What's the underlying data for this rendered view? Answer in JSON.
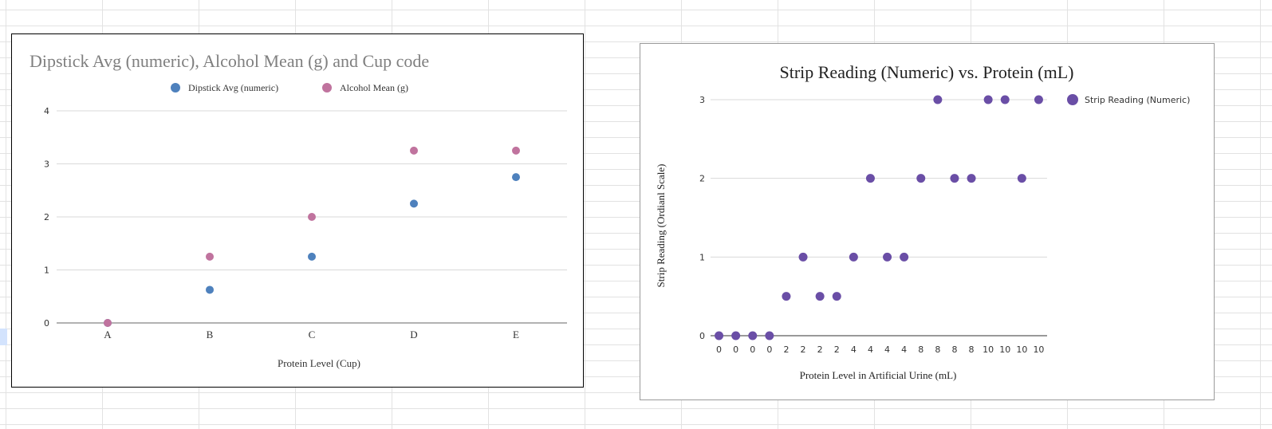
{
  "chart_data": [
    {
      "type": "scatter",
      "title": "Dipstick Avg (numeric), Alcohol Mean (g) and Cup code",
      "xlabel": "Protein Level (Cup)",
      "ylabel": "",
      "categories": [
        "A",
        "B",
        "C",
        "D",
        "E"
      ],
      "ylim": [
        0,
        4
      ],
      "yticks": [
        0,
        1,
        2,
        3,
        4
      ],
      "grid": true,
      "legend_position": "top",
      "series": [
        {
          "name": "Dipstick Avg (numeric)",
          "color": "#4e81bd",
          "values": [
            0,
            0.625,
            1.25,
            2.25,
            2.75
          ]
        },
        {
          "name": "Alcohol Mean (g)",
          "color": "#c0739e",
          "values": [
            0,
            1.25,
            2,
            3.25,
            3.25
          ]
        }
      ]
    },
    {
      "type": "scatter",
      "title": "Strip Reading (Numeric) vs. Protein (mL)",
      "xlabel": "Protein Level in Artificial Urine (mL)",
      "ylabel": "Strip Reading (Ordianl Scale)",
      "categories": [
        "0",
        "0",
        "0",
        "0",
        "2",
        "2",
        "2",
        "2",
        "4",
        "4",
        "4",
        "4",
        "8",
        "8",
        "8",
        "8",
        "10",
        "10",
        "10",
        "10"
      ],
      "ylim": [
        0,
        3
      ],
      "yticks": [
        0,
        1,
        2,
        3
      ],
      "grid": true,
      "legend_position": "right",
      "series": [
        {
          "name": "Strip Reading (Numeric)",
          "color": "#6a4ea6",
          "values": [
            0,
            0,
            0,
            0,
            0.5,
            1,
            0.5,
            0.5,
            1,
            2,
            1,
            1,
            2,
            3,
            2,
            2,
            3,
            3,
            2,
            3
          ]
        }
      ]
    }
  ]
}
